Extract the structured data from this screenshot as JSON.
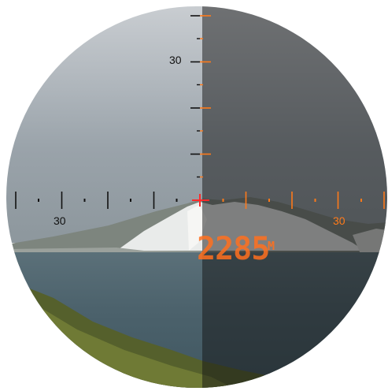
{
  "reticle": {
    "vertical_scale_label": "30",
    "left_scale_label": "30",
    "right_scale_label": "30"
  },
  "rangefinder": {
    "distance": "2285",
    "unit": "M"
  },
  "colors": {
    "reticle_left": "#111111",
    "reticle_right": "#ff7a1a",
    "center_mark": "#ff2a2a",
    "readout": "#ff7020"
  },
  "icons": {
    "center_mark": "crosshair-center-icon"
  }
}
